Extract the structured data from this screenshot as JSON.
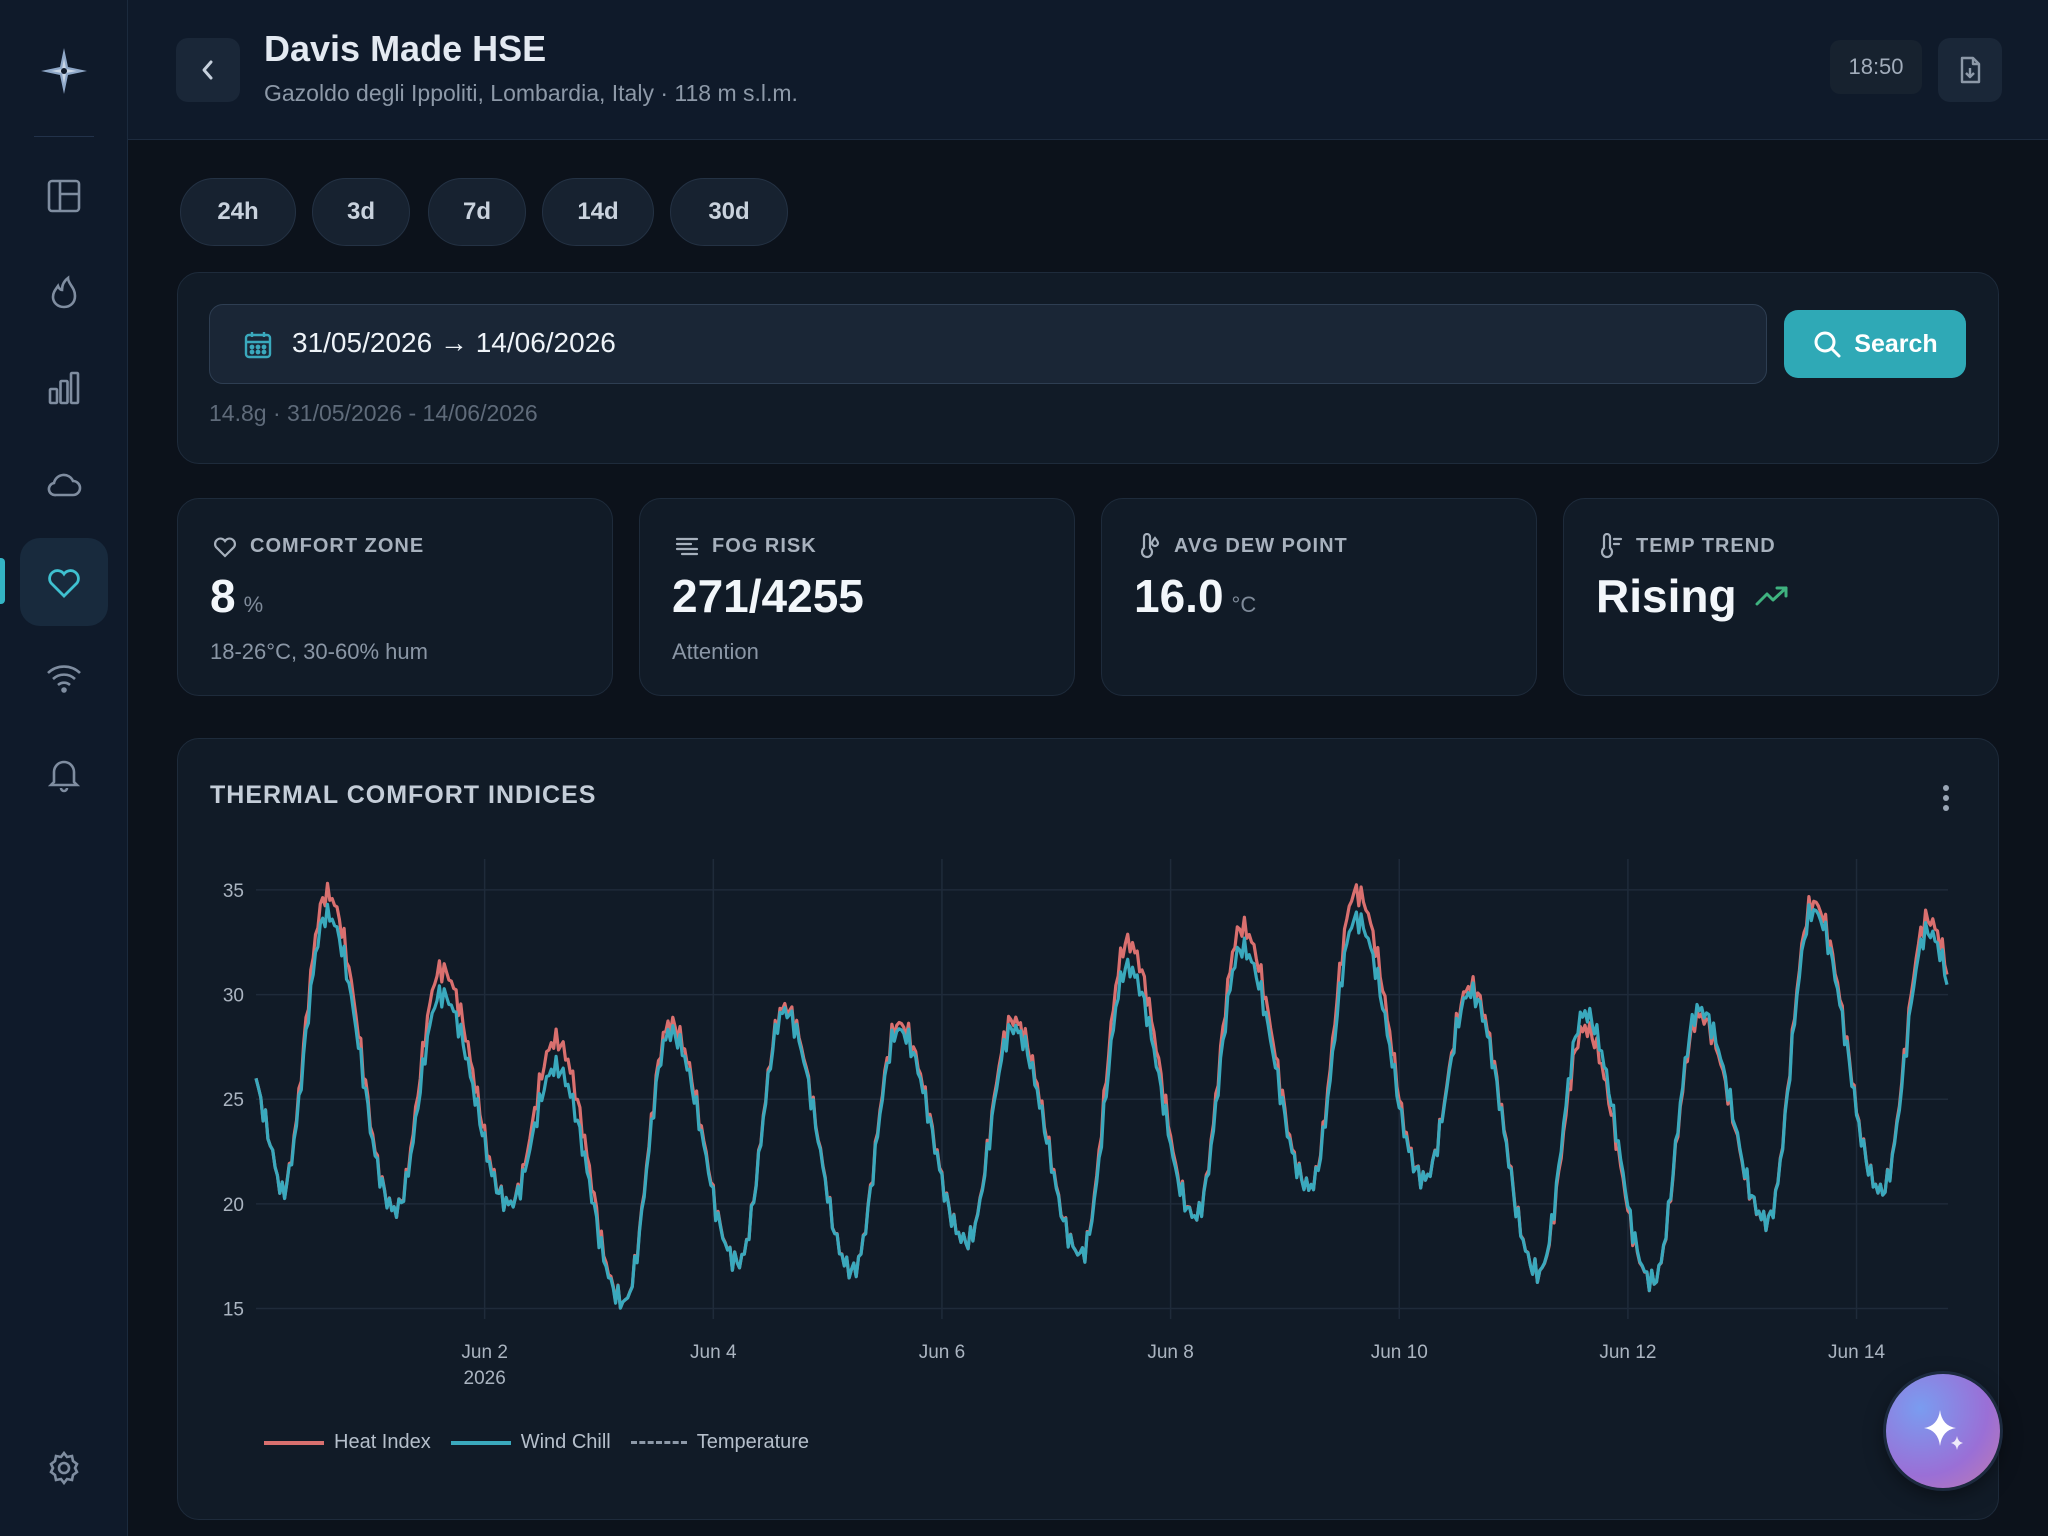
{
  "header": {
    "title": "Davis Made HSE",
    "subtitle": "Gazoldo degli Ippoliti, Lombardia, Italy · 118 m s.l.m.",
    "time": "18:50"
  },
  "sidebar": {
    "items": [
      {
        "icon": "dashboard-icon"
      },
      {
        "icon": "flame-icon"
      },
      {
        "icon": "bar-chart-icon"
      },
      {
        "icon": "cloud-icon"
      },
      {
        "icon": "heart-icon",
        "active": true
      },
      {
        "icon": "wifi-icon"
      },
      {
        "icon": "bell-icon"
      },
      {
        "icon": "gear-icon"
      }
    ]
  },
  "ranges": [
    "24h",
    "3d",
    "7d",
    "14d",
    "30d"
  ],
  "search": {
    "date_value": "31/05/2026 → 14/06/2026",
    "button_label": "Search",
    "hint": "14.8g · 31/05/2026 - 14/06/2026"
  },
  "stats": {
    "comfort": {
      "label": "COMFORT ZONE",
      "value": "8",
      "unit": "%",
      "sub": "18-26°C, 30-60% hum"
    },
    "fog": {
      "label": "FOG RISK",
      "value": "271/4255",
      "sub": "Attention"
    },
    "dew": {
      "label": "AVG DEW POINT",
      "value": "16.0",
      "unit": "°C"
    },
    "trend": {
      "label": "TEMP TREND",
      "value": "Rising"
    }
  },
  "colors": {
    "accent": "#2fa9b6",
    "heat_index": "#d9706f",
    "wind_chill": "#3aa9bd",
    "trend_up": "#3fb27f"
  },
  "chart_data": {
    "type": "line",
    "title": "THERMAL COMFORT INDICES",
    "x_tick_labels": [
      "Jun 2",
      "Jun 4",
      "Jun 6",
      "Jun 8",
      "Jun 10",
      "Jun 12",
      "Jun 14"
    ],
    "x_tick_sublabel": "2026",
    "y_ticks": [
      15,
      20,
      25,
      30,
      35
    ],
    "ylim": [
      14.5,
      36
    ],
    "xlim_days": [
      0.0,
      14.8
    ],
    "grid": true,
    "legend_placement": "bottom-left",
    "series": [
      {
        "name": "Heat Index",
        "color": "#d9706f"
      },
      {
        "name": "Wind Chill",
        "color": "#3aa9bd"
      },
      {
        "name": "Temperature",
        "color": "#8d99a8",
        "dashed": true
      }
    ],
    "daily": [
      {
        "day": "May 31",
        "max_hi": 34.8,
        "max_wc": 33.8,
        "min": 20.5
      },
      {
        "day": "Jun 1",
        "max_hi": 31.2,
        "max_wc": 30.0,
        "min": 19.7
      },
      {
        "day": "Jun 2",
        "max_hi": 27.8,
        "max_wc": 26.5,
        "min": 20.0
      },
      {
        "day": "Jun 3",
        "max_hi": 28.6,
        "max_wc": 28.2,
        "min": 15.3
      },
      {
        "day": "Jun 4",
        "max_hi": 29.4,
        "max_wc": 29.2,
        "min": 17.2
      },
      {
        "day": "Jun 5",
        "max_hi": 28.6,
        "max_wc": 28.3,
        "min": 16.8
      },
      {
        "day": "Jun 6",
        "max_hi": 28.8,
        "max_wc": 28.4,
        "min": 18.2
      },
      {
        "day": "Jun 7",
        "max_hi": 32.5,
        "max_wc": 31.3,
        "min": 17.6
      },
      {
        "day": "Jun 8",
        "max_hi": 33.2,
        "max_wc": 32.2,
        "min": 19.4
      },
      {
        "day": "Jun 9",
        "max_hi": 34.9,
        "max_wc": 33.6,
        "min": 20.8
      },
      {
        "day": "Jun 10",
        "max_hi": 30.4,
        "max_wc": 30.1,
        "min": 21.2
      },
      {
        "day": "Jun 11",
        "max_hi": 28.4,
        "max_wc": 29.1,
        "min": 16.7
      },
      {
        "day": "Jun 12",
        "max_hi": 29.0,
        "max_wc": 29.3,
        "min": 16.3
      },
      {
        "day": "Jun 13",
        "max_hi": 34.4,
        "max_wc": 34.0,
        "min": 19.2
      },
      {
        "day": "Jun 14",
        "max_hi": 33.6,
        "max_wc": 33.0,
        "min": 20.6
      }
    ]
  }
}
